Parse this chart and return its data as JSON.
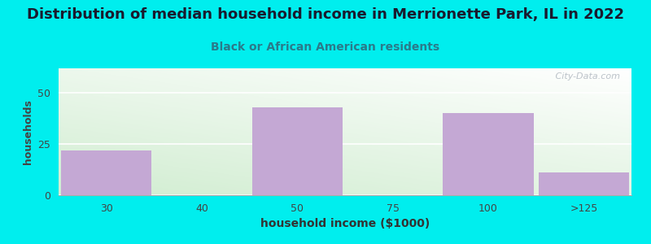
{
  "title": "Distribution of median household income in Merrionette Park, IL in 2022",
  "subtitle": "Black or African American residents",
  "xlabel": "household income ($1000)",
  "ylabel": "households",
  "background_color": "#00EEEE",
  "plot_bg_left": "#c8e6c8",
  "plot_bg_right": "#f8f8ff",
  "bar_color": "#C4A8D4",
  "categories": [
    "30",
    "40",
    "50",
    "75",
    "100",
    ">125"
  ],
  "values": [
    22,
    0,
    43,
    0,
    40,
    11
  ],
  "ylim": [
    0,
    62
  ],
  "yticks": [
    0,
    25,
    50
  ],
  "title_fontsize": 13,
  "subtitle_fontsize": 10,
  "xlabel_fontsize": 10,
  "ylabel_fontsize": 9,
  "watermark": " City-Data.com"
}
